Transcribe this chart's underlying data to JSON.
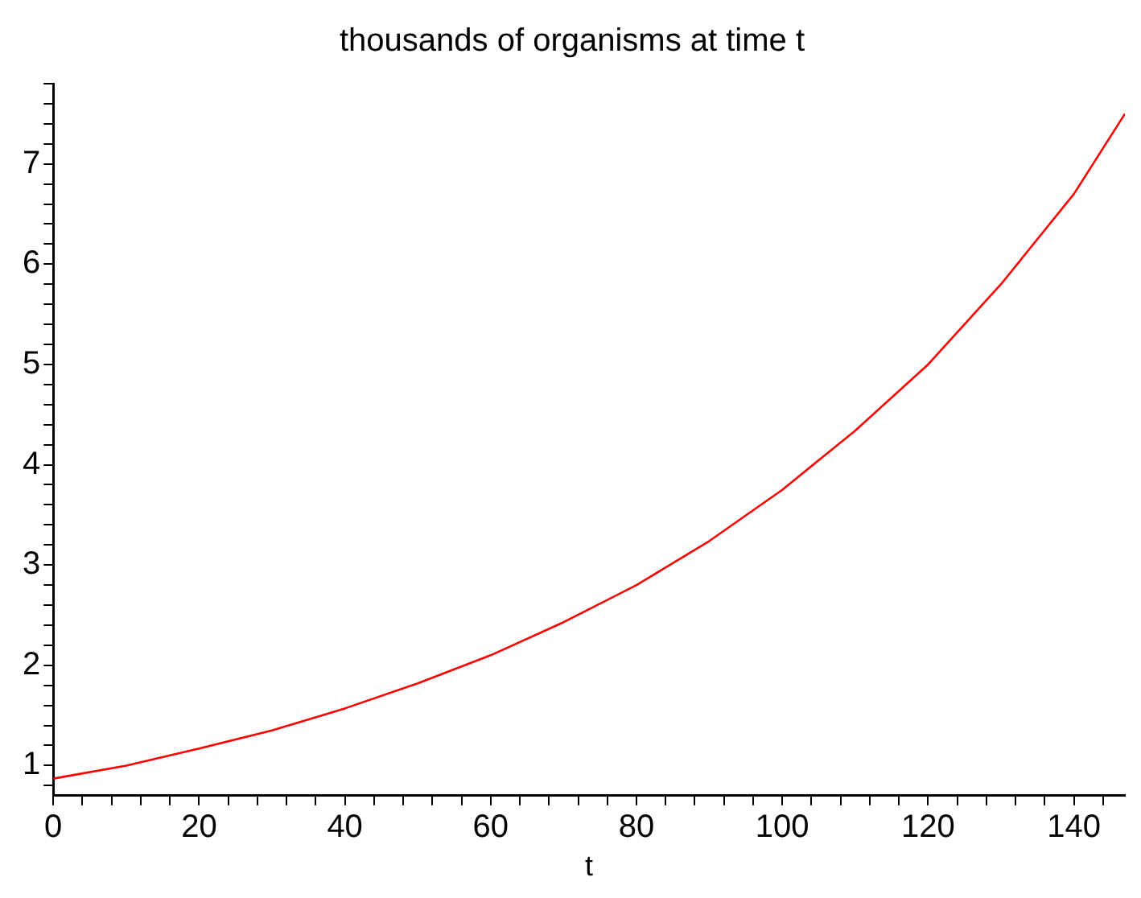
{
  "chart_data": {
    "type": "line",
    "title": "thousands of organisms at time t",
    "xlabel": "t",
    "x": [
      0,
      10,
      20,
      30,
      40,
      50,
      60,
      70,
      80,
      90,
      100,
      110,
      120,
      130,
      140,
      147
    ],
    "series": [
      {
        "color": "#ff0000",
        "values": [
          0.87,
          1.0,
          1.17,
          1.35,
          1.57,
          1.82,
          2.1,
          2.43,
          2.8,
          3.24,
          3.75,
          4.34,
          5.0,
          5.8,
          6.7,
          7.5
        ]
      }
    ],
    "xlim": [
      0,
      147
    ],
    "xticks": [
      0,
      {
        "value": 4,
        "label": null
      },
      {
        "value": 8,
        "label": null
      },
      {
        "value": 12,
        "label": null
      },
      {
        "value": 16,
        "label": null
      },
      20,
      {
        "value": 24,
        "label": null
      },
      {
        "value": 28,
        "label": null
      },
      {
        "value": 32,
        "label": null
      },
      {
        "value": 36,
        "label": null
      },
      40,
      {
        "value": 44,
        "label": null
      },
      {
        "value": 48,
        "label": null
      },
      {
        "value": 52,
        "label": null
      },
      {
        "value": 56,
        "label": null
      },
      60,
      {
        "value": 64,
        "label": null
      },
      {
        "value": 68,
        "label": null
      },
      {
        "value": 72,
        "label": null
      },
      {
        "value": 76,
        "label": null
      },
      80,
      {
        "value": 84,
        "label": null
      },
      {
        "value": 88,
        "label": null
      },
      {
        "value": 92,
        "label": null
      },
      {
        "value": 96,
        "label": null
      },
      100,
      {
        "value": 104,
        "label": null
      },
      {
        "value": 108,
        "label": null
      },
      {
        "value": 112,
        "label": null
      },
      {
        "value": 116,
        "label": null
      },
      120,
      {
        "value": 124,
        "label": null
      },
      {
        "value": 128,
        "label": null
      },
      {
        "value": 132,
        "label": null
      },
      {
        "value": 136,
        "label": null
      },
      140,
      {
        "value": 144,
        "label": null
      }
    ],
    "ylim": [
      0.7,
      7.8
    ],
    "yticks": [
      {
        "value": 0.8,
        "label": null
      },
      1,
      {
        "value": 1.2,
        "label": null
      },
      {
        "value": 1.4,
        "label": null
      },
      {
        "value": 1.6,
        "label": null
      },
      {
        "value": 1.8,
        "label": null
      },
      2,
      {
        "value": 2.2,
        "label": null
      },
      {
        "value": 2.4,
        "label": null
      },
      {
        "value": 2.6,
        "label": null
      },
      {
        "value": 2.8,
        "label": null
      },
      3,
      {
        "value": 3.2,
        "label": null
      },
      {
        "value": 3.4,
        "label": null
      },
      {
        "value": 3.6,
        "label": null
      },
      {
        "value": 3.8,
        "label": null
      },
      4,
      {
        "value": 4.2,
        "label": null
      },
      {
        "value": 4.4,
        "label": null
      },
      {
        "value": 4.6,
        "label": null
      },
      {
        "value": 4.8,
        "label": null
      },
      5,
      {
        "value": 5.2,
        "label": null
      },
      {
        "value": 5.4,
        "label": null
      },
      {
        "value": 5.6,
        "label": null
      },
      {
        "value": 5.8,
        "label": null
      },
      6,
      {
        "value": 6.2,
        "label": null
      },
      {
        "value": 6.4,
        "label": null
      },
      {
        "value": 6.6,
        "label": null
      },
      {
        "value": 6.8,
        "label": null
      },
      7,
      {
        "value": 7.2,
        "label": null
      },
      {
        "value": 7.4,
        "label": null
      },
      {
        "value": 7.6,
        "label": null
      },
      {
        "value": 7.8,
        "label": null
      }
    ],
    "grid": false,
    "legend": false,
    "marker": "none",
    "line_style": "solid"
  }
}
